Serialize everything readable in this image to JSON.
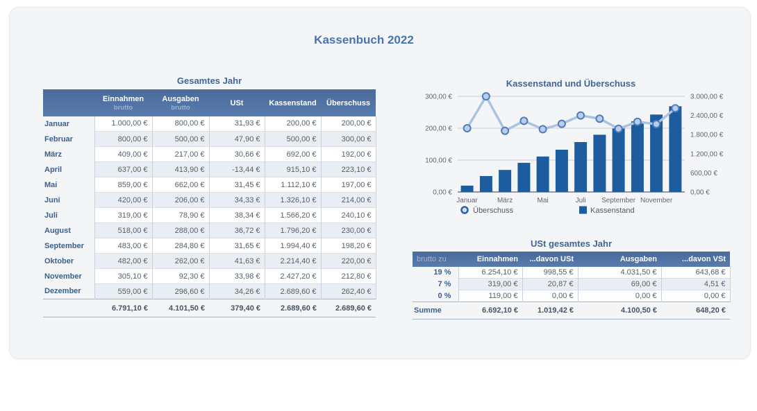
{
  "page_title": "Kassenbuch 2022",
  "colors": {
    "accent_blue": "#4a74ad",
    "bar": "#1d5c9e",
    "line": "#a9c4e3",
    "marker_fill": "#b8cee9",
    "marker_stroke": "#4f7cba",
    "gridline": "#c9ccd0",
    "axis_line": "#97999c",
    "header_top": "#4a6b9c",
    "header_bottom": "#597cae"
  },
  "year_table": {
    "title": "Gesamtes Jahr",
    "columns": [
      {
        "label": "",
        "sub": ""
      },
      {
        "label": "Einnahmen",
        "sub": "brutto"
      },
      {
        "label": "Ausgaben",
        "sub": "brutto"
      },
      {
        "label": "USt",
        "sub": ""
      },
      {
        "label": "Kassenstand",
        "sub": ""
      },
      {
        "label": "Überschuss",
        "sub": ""
      }
    ],
    "rows": [
      {
        "label": "Januar",
        "values": [
          "1.000,00 €",
          "800,00 €",
          "31,93 €",
          "200,00 €",
          "200,00 €"
        ]
      },
      {
        "label": "Februar",
        "values": [
          "800,00 €",
          "500,00 €",
          "47,90 €",
          "500,00 €",
          "300,00 €"
        ]
      },
      {
        "label": "März",
        "values": [
          "409,00 €",
          "217,00 €",
          "30,66 €",
          "692,00 €",
          "192,00 €"
        ]
      },
      {
        "label": "April",
        "values": [
          "637,00 €",
          "413,90 €",
          "-13,44 €",
          "915,10 €",
          "223,10 €"
        ]
      },
      {
        "label": "Mai",
        "values": [
          "859,00 €",
          "662,00 €",
          "31,45 €",
          "1.112,10 €",
          "197,00 €"
        ]
      },
      {
        "label": "Juni",
        "values": [
          "420,00 €",
          "206,00 €",
          "34,33 €",
          "1.326,10 €",
          "214,00 €"
        ]
      },
      {
        "label": "Juli",
        "values": [
          "319,00 €",
          "78,90 €",
          "38,34 €",
          "1.566,20 €",
          "240,10 €"
        ]
      },
      {
        "label": "August",
        "values": [
          "518,00 €",
          "288,00 €",
          "36,72 €",
          "1.796,20 €",
          "230,00 €"
        ]
      },
      {
        "label": "September",
        "values": [
          "483,00 €",
          "284,80 €",
          "31,65 €",
          "1.994,40 €",
          "198,20 €"
        ]
      },
      {
        "label": "Oktober",
        "values": [
          "482,00 €",
          "262,00 €",
          "41,63 €",
          "2.214,40 €",
          "220,00 €"
        ]
      },
      {
        "label": "November",
        "values": [
          "305,10 €",
          "92,30 €",
          "33,98 €",
          "2.427,20 €",
          "212,80 €"
        ]
      },
      {
        "label": "Dezember",
        "values": [
          "559,00 €",
          "296,60 €",
          "34,26 €",
          "2.689,60 €",
          "262,40 €"
        ]
      }
    ],
    "sum_row": {
      "label": "",
      "values": [
        "6.791,10 €",
        "4.101,50 €",
        "379,40 €",
        "2.689,60 €",
        "2.689,60 €"
      ]
    }
  },
  "chart_data": {
    "type": "bar",
    "title": "Kassenstand und Überschuss",
    "categories": [
      "Januar",
      "Februar",
      "März",
      "April",
      "Mai",
      "Juni",
      "Juli",
      "August",
      "September",
      "Oktober",
      "November",
      "Dezember"
    ],
    "x_tick_labels": [
      "Januar",
      "März",
      "Mai",
      "Juli",
      "September",
      "November"
    ],
    "series": [
      {
        "name": "Überschuss",
        "type": "line",
        "axis": "left",
        "values": [
          200,
          300,
          192,
          223.1,
          197,
          214,
          240.1,
          230,
          198.2,
          220,
          212.8,
          262.4
        ]
      },
      {
        "name": "Kassenstand",
        "type": "bar",
        "axis": "right",
        "values": [
          200,
          500,
          692,
          915.1,
          1112.1,
          1326.1,
          1566.2,
          1796.2,
          1994.4,
          2214.4,
          2427.2,
          2689.6
        ]
      }
    ],
    "left_axis": {
      "min": 0,
      "max": 300,
      "tick_values": [
        300,
        200,
        100,
        0
      ],
      "tick_labels": [
        "300,00 €",
        "200,00 €",
        "100,00 €",
        "0,00 €"
      ]
    },
    "right_axis": {
      "min": 0,
      "max": 3000,
      "tick_values": [
        3000,
        2400,
        1800,
        1200,
        600,
        0
      ],
      "tick_labels": [
        "3.000,00 €",
        "2.400,00 €",
        "1.800,00 €",
        "1.200,00 €",
        "600,00 €",
        "0,00 €"
      ]
    },
    "legend": [
      {
        "name": "Überschuss",
        "marker": "circle"
      },
      {
        "name": "Kassenstand",
        "marker": "square"
      }
    ],
    "grid": "horizontal-left-ticks",
    "legend_position": "bottom"
  },
  "ust_table": {
    "title": "USt gesamtes Jahr",
    "columns": [
      "brutto zu",
      "Einnahmen",
      "...davon USt",
      "Ausgaben",
      "...davon VSt"
    ],
    "rows": [
      {
        "label": "19 %",
        "values": [
          "6.254,10 €",
          "998,55 €",
          "4.031,50 €",
          "643,68 €"
        ]
      },
      {
        "label": "7 %",
        "values": [
          "319,00 €",
          "20,87 €",
          "69,00 €",
          "4,51 €"
        ]
      },
      {
        "label": "0 %",
        "values": [
          "119,00 €",
          "0,00 €",
          "0,00 €",
          "0,00 €"
        ]
      }
    ],
    "sum_row": {
      "label": "Summe",
      "values": [
        "6.692,10 €",
        "1.019,42 €",
        "4.100,50 €",
        "648,20 €"
      ]
    }
  }
}
